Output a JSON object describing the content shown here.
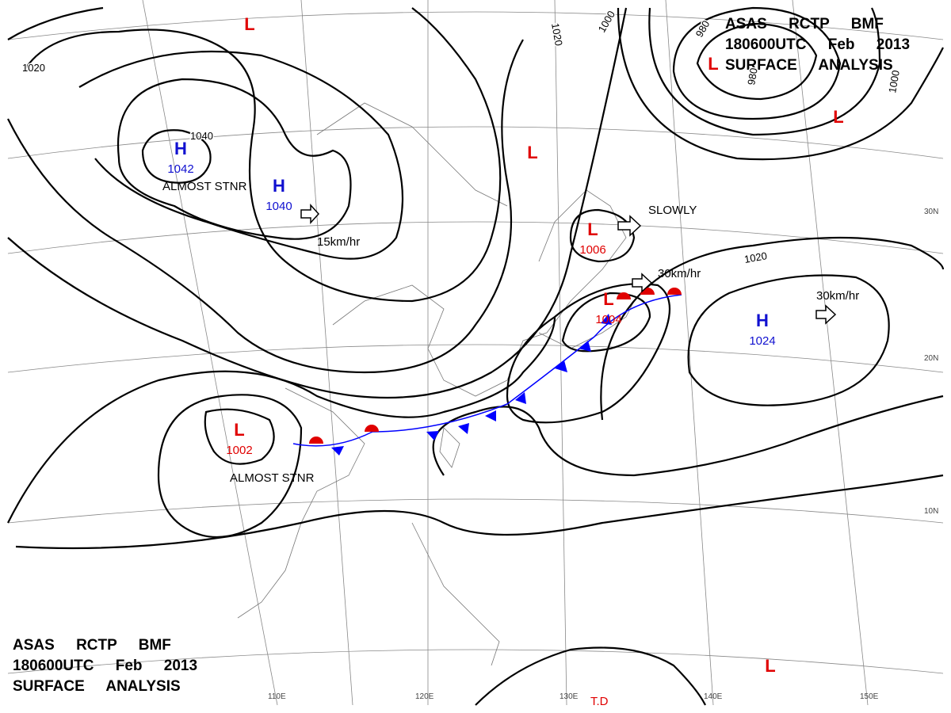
{
  "header_top": {
    "lines": [
      "ASAS RCTP BMF",
      "180600UTC Feb 2013",
      "SURFACE ANALYSIS"
    ]
  },
  "header_bottom": {
    "lines": [
      "ASAS RCTP BMF",
      "180600UTC Feb 2013",
      "SURFACE ANALYSIS"
    ]
  },
  "systems": [
    {
      "symbol": "H",
      "pressure": 1042
    },
    {
      "symbol": "H",
      "pressure": 1040
    },
    {
      "symbol": "L",
      "pressure": 1002
    },
    {
      "symbol": "L",
      "pressure": 1004
    },
    {
      "symbol": "L",
      "pressure": 1006
    },
    {
      "symbol": "H",
      "pressure": 1024
    },
    {
      "symbol": "L"
    },
    {
      "symbol": "L"
    },
    {
      "symbol": "L"
    },
    {
      "symbol": "L"
    },
    {
      "symbol": "L"
    }
  ],
  "annotations": [
    "ALMOST STNR",
    "ALMOST STNR",
    "15km/hr",
    "SLOWLY",
    "30km/hr",
    "30km/hr",
    "T.D"
  ],
  "isobar_labels": [
    1020,
    1020,
    1000,
    980,
    980,
    1040,
    1020,
    1000
  ],
  "lon_labels": [
    "110E",
    "120E",
    "130E",
    "140E",
    "150E"
  ],
  "lat_labels": [
    "30N",
    "20N",
    "10N"
  ]
}
